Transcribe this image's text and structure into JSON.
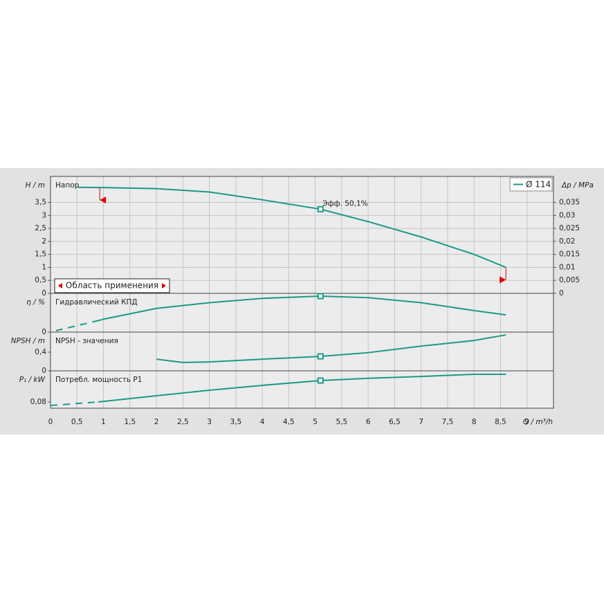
{
  "chart_data": [
    {
      "type": "line",
      "title": "Напор",
      "ylabel": "H / m",
      "y2label": "Δp / MPa",
      "ylim": [
        0,
        4.5
      ],
      "yticks": [
        0,
        {
          "value": 0.5,
          "label": "0,5"
        },
        1,
        {
          "value": 1.5,
          "label": "1,5"
        },
        2,
        {
          "value": 2.5,
          "label": "2,5"
        },
        3,
        {
          "value": 3.5,
          "label": "3,5"
        }
      ],
      "y2lim": [
        0,
        0.045
      ],
      "y2ticks": [
        0,
        {
          "value": 0.005,
          "label": "0,005"
        },
        {
          "value": 0.01,
          "label": "0,01"
        },
        {
          "value": 0.015,
          "label": "0,015"
        },
        {
          "value": 0.02,
          "label": "0,02"
        },
        {
          "value": 0.025,
          "label": "0,025"
        },
        {
          "value": 0.03,
          "label": "0,03"
        },
        {
          "value": 0.035,
          "label": "0,035"
        }
      ],
      "grid": true,
      "series": [
        {
          "name": "Ø 114",
          "color": "#1a9a88",
          "x": [
            0.52,
            1,
            2,
            3,
            4,
            5.1,
            6,
            7,
            8,
            8.6
          ],
          "values": [
            4.08,
            4.07,
            4.03,
            3.9,
            3.6,
            3.24,
            2.76,
            2.17,
            1.5,
            1.0
          ]
        }
      ],
      "marker": {
        "x": 5.1,
        "y": 3.24
      },
      "annotation": "Эфф.  50,1%",
      "range_label": "Область применения",
      "range": [
        0.93,
        8.6
      ],
      "range_color": "#e00000",
      "legend": "upper right"
    },
    {
      "type": "line",
      "title": "Гидравлический КПД",
      "ylabel": "η / %",
      "ylim": [
        0,
        54
      ],
      "yticks": [
        0
      ],
      "series": [
        {
          "color": "#1a9a88",
          "dash": true,
          "x": [
            0.1,
            0.9
          ],
          "values": [
            2,
            16
          ]
        },
        {
          "color": "#1a9a88",
          "x": [
            0.9,
            1,
            2,
            3,
            4,
            5.1,
            6,
            7,
            8,
            8.6
          ],
          "values": [
            16,
            18,
            33,
            41,
            47,
            50.1,
            48,
            41,
            30,
            24
          ]
        }
      ],
      "marker": {
        "x": 5.1,
        "y": 50.1
      }
    },
    {
      "type": "line",
      "title": "NPSH - значения",
      "ylabel": "NPSH / m",
      "ylim": [
        0,
        0.83
      ],
      "yticks": [
        0,
        {
          "value": 0.4,
          "label": "0,4"
        }
      ],
      "series": [
        {
          "color": "#1a9a88",
          "x": [
            2,
            2.5,
            3,
            4,
            5.1,
            6,
            7,
            8,
            8.6
          ],
          "values": [
            0.25,
            0.18,
            0.19,
            0.25,
            0.31,
            0.39,
            0.53,
            0.65,
            0.77
          ]
        }
      ],
      "marker": {
        "x": 5.1,
        "y": 0.31
      }
    },
    {
      "type": "line",
      "title": "Потребл. мощность P1",
      "ylabel": "P₁ / kW",
      "xlabel": "Q / m³/h",
      "ylim": [
        0.07,
        0.13
      ],
      "yticks": [
        {
          "value": 0.08,
          "label": "0,08"
        }
      ],
      "xlim": [
        0,
        9.5
      ],
      "xticks": [
        0,
        {
          "value": 0.5,
          "label": "0,5"
        },
        1,
        {
          "value": 1.5,
          "label": "1,5"
        },
        2,
        {
          "value": 2.5,
          "label": "2,5"
        },
        3,
        {
          "value": 3.5,
          "label": "3,5"
        },
        4,
        {
          "value": 4.5,
          "label": "4,5"
        },
        5,
        {
          "value": 5.5,
          "label": "5,5"
        },
        6,
        {
          "value": 6.5,
          "label": "6,5"
        },
        7,
        {
          "value": 7.5,
          "label": "7,5"
        },
        8,
        {
          "value": 8.5,
          "label": "8,5"
        },
        9
      ],
      "series": [
        {
          "color": "#1a9a88",
          "dash": true,
          "x": [
            0,
            0.9
          ],
          "values": [
            0.0744,
            0.08
          ]
        },
        {
          "color": "#1a9a88",
          "x": [
            0.9,
            2,
            3,
            4,
            5.1,
            6,
            7,
            8,
            8.6
          ],
          "values": [
            0.08,
            0.09,
            0.0989,
            0.1067,
            0.1144,
            0.118,
            0.121,
            0.1244,
            0.1244
          ]
        }
      ],
      "marker": {
        "x": 5.1,
        "y": 0.1144
      }
    }
  ]
}
